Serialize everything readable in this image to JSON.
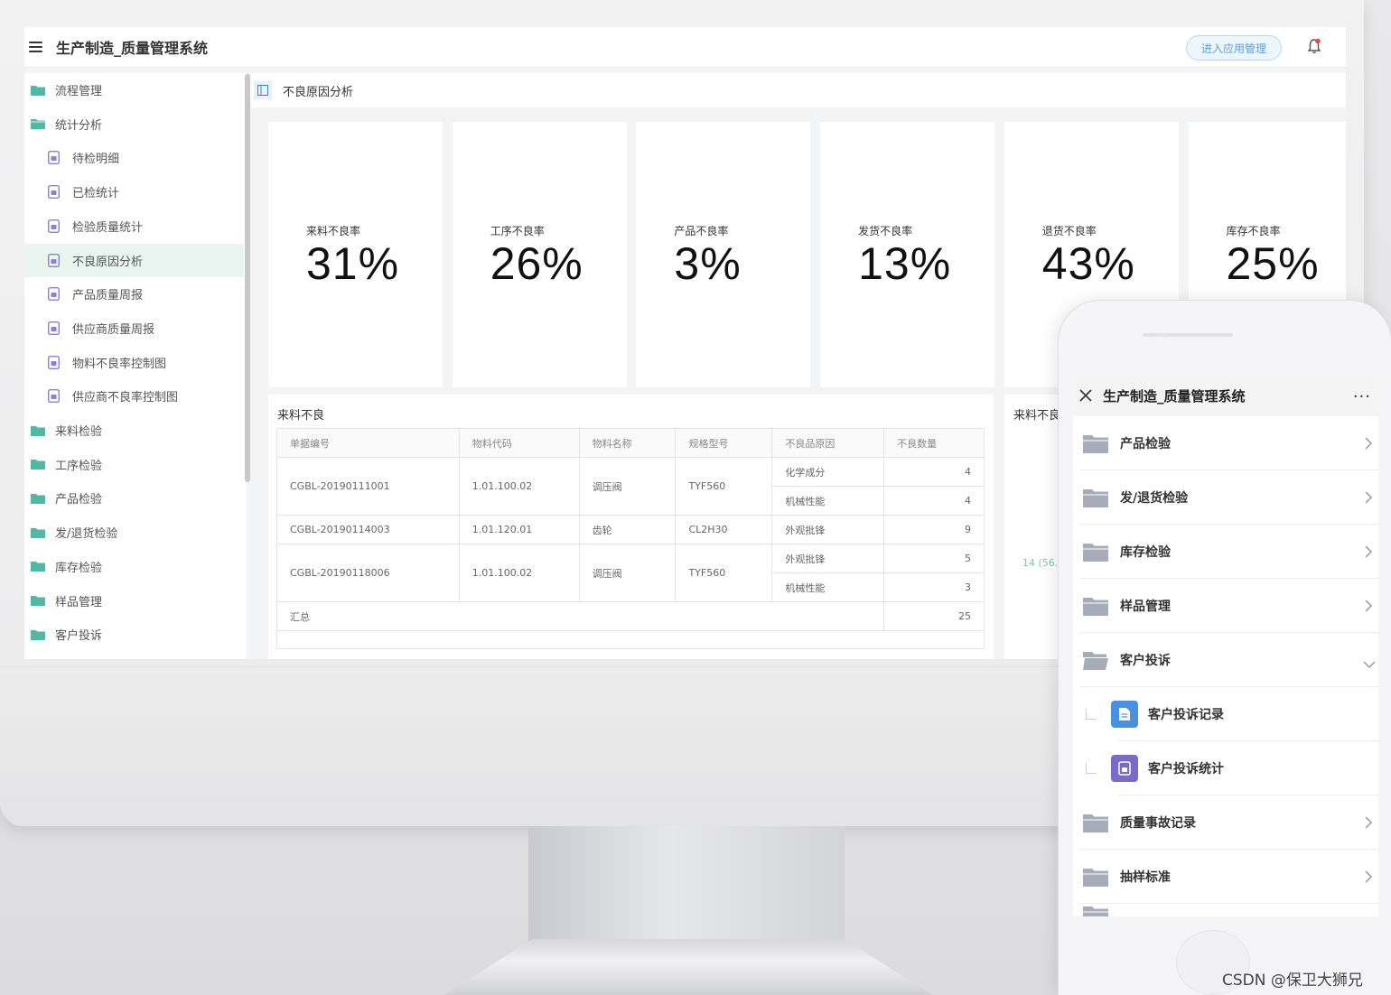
{
  "app": {
    "title": "生产制造_质量管理系统",
    "enter_app_label": "进入应用管理"
  },
  "sidebar": {
    "items": [
      {
        "label": "流程管理",
        "icon": "folder-icon",
        "level": 0
      },
      {
        "label": "统计分析",
        "icon": "folder-open-icon",
        "level": 0
      },
      {
        "label": "待检明细",
        "icon": "report-icon",
        "level": 1
      },
      {
        "label": "已检统计",
        "icon": "report-icon",
        "level": 1
      },
      {
        "label": "检验质量统计",
        "icon": "report-icon",
        "level": 1
      },
      {
        "label": "不良原因分析",
        "icon": "report-icon",
        "level": 1,
        "active": true
      },
      {
        "label": "产品质量周报",
        "icon": "report-icon",
        "level": 1
      },
      {
        "label": "供应商质量周报",
        "icon": "report-icon",
        "level": 1
      },
      {
        "label": "物料不良率控制图",
        "icon": "report-icon",
        "level": 1
      },
      {
        "label": "供应商不良率控制图",
        "icon": "report-icon",
        "level": 1
      },
      {
        "label": "来料检验",
        "icon": "folder-icon",
        "level": 0
      },
      {
        "label": "工序检验",
        "icon": "folder-icon",
        "level": 0
      },
      {
        "label": "产品检验",
        "icon": "folder-icon",
        "level": 0
      },
      {
        "label": "发/退货检验",
        "icon": "folder-icon",
        "level": 0
      },
      {
        "label": "库存检验",
        "icon": "folder-icon",
        "level": 0
      },
      {
        "label": "样品管理",
        "icon": "folder-icon",
        "level": 0
      },
      {
        "label": "客户投诉",
        "icon": "folder-icon",
        "level": 0
      }
    ]
  },
  "tab": {
    "label": "不良原因分析"
  },
  "cards": [
    {
      "label": "来料不良率",
      "value": "31%"
    },
    {
      "label": "工序不良率",
      "value": "26%"
    },
    {
      "label": "产品不良率",
      "value": "3%"
    },
    {
      "label": "发货不良率",
      "value": "13%"
    },
    {
      "label": "退货不良率",
      "value": "43%"
    },
    {
      "label": "库存不良率",
      "value": "25%"
    }
  ],
  "table_panel": {
    "title": "来料不良",
    "columns": [
      "单据编号",
      "物料代码",
      "物料名称",
      "规格型号",
      "不良品原因",
      "不良数量"
    ],
    "groups": [
      {
        "doc": "CGBL-20190111001",
        "code": "1.01.100.02",
        "name": "调压阀",
        "spec": "TYF560",
        "reasons": [
          {
            "reason": "化学成分",
            "qty": "4"
          },
          {
            "reason": "机械性能",
            "qty": "4"
          }
        ]
      },
      {
        "doc": "CGBL-20190114003",
        "code": "1.01.120.01",
        "name": "齿轮",
        "spec": "CL2H30",
        "reasons": [
          {
            "reason": "外观批锋",
            "qty": "9"
          }
        ]
      },
      {
        "doc": "CGBL-20190118006",
        "code": "1.01.100.02",
        "name": "调压阀",
        "spec": "TYF560",
        "reasons": [
          {
            "reason": "外观批锋",
            "qty": "5"
          },
          {
            "reason": "机械性能",
            "qty": "3"
          }
        ]
      }
    ],
    "total_label": "汇总",
    "total_value": "25"
  },
  "side_panel": {
    "title": "来料不良",
    "value_text": "14 (56."
  },
  "mobile": {
    "title": "生产制造_质量管理系统",
    "more": "···",
    "items": [
      {
        "label": "产品检验",
        "type": "folder",
        "chevron": "right"
      },
      {
        "label": "发/退货检验",
        "type": "folder",
        "chevron": "right"
      },
      {
        "label": "库存检验",
        "type": "folder",
        "chevron": "right"
      },
      {
        "label": "样品管理",
        "type": "folder",
        "chevron": "right"
      },
      {
        "label": "客户投诉",
        "type": "folder-open",
        "chevron": "down"
      },
      {
        "label": "客户投诉记录",
        "type": "form",
        "color": "#4a90e2"
      },
      {
        "label": "客户投诉统计",
        "type": "report",
        "color": "#7b6bc8"
      },
      {
        "label": "质量事故记录",
        "type": "folder",
        "chevron": "right"
      },
      {
        "label": "抽样标准",
        "type": "folder",
        "chevron": "right"
      }
    ]
  },
  "watermark": "CSDN @保卫大狮兄",
  "colors": {
    "folder": "#4fb9a6",
    "report": "#8e7ed6",
    "active_bg": "#eaf4f0",
    "mobile_folder": "#a7adb8"
  }
}
